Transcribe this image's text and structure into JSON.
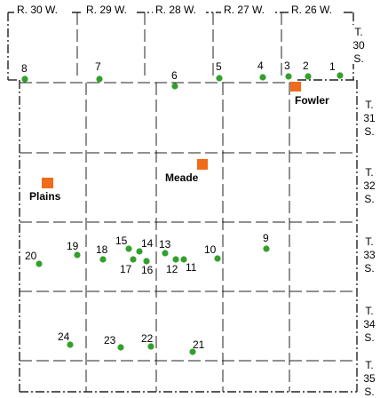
{
  "map": {
    "ranges": [
      "R. 30 W.",
      "R. 29 W.",
      "R. 28 W.",
      "R. 27 W.",
      "R. 26 W."
    ],
    "townships": [
      {
        "t": "T.",
        "n": "30",
        "s": "S."
      },
      {
        "t": "T.",
        "n": "31",
        "s": "S."
      },
      {
        "t": "T.",
        "n": "32",
        "s": "S."
      },
      {
        "t": "T.",
        "n": "33",
        "s": "S."
      },
      {
        "t": "T.",
        "n": "34",
        "s": "S."
      },
      {
        "t": "T.",
        "n": "35",
        "s": "S."
      }
    ],
    "towns": [
      "Fowler",
      "Meade",
      "Plains"
    ],
    "wells": [
      "1",
      "2",
      "3",
      "4",
      "5",
      "6",
      "7",
      "8",
      "9",
      "10",
      "11",
      "12",
      "13",
      "14",
      "15",
      "16",
      "17",
      "18",
      "19",
      "20",
      "21",
      "22",
      "23",
      "24"
    ],
    "colors": {
      "well": "#33a02c",
      "town": "#f26b1a",
      "lines": "#222222"
    }
  }
}
